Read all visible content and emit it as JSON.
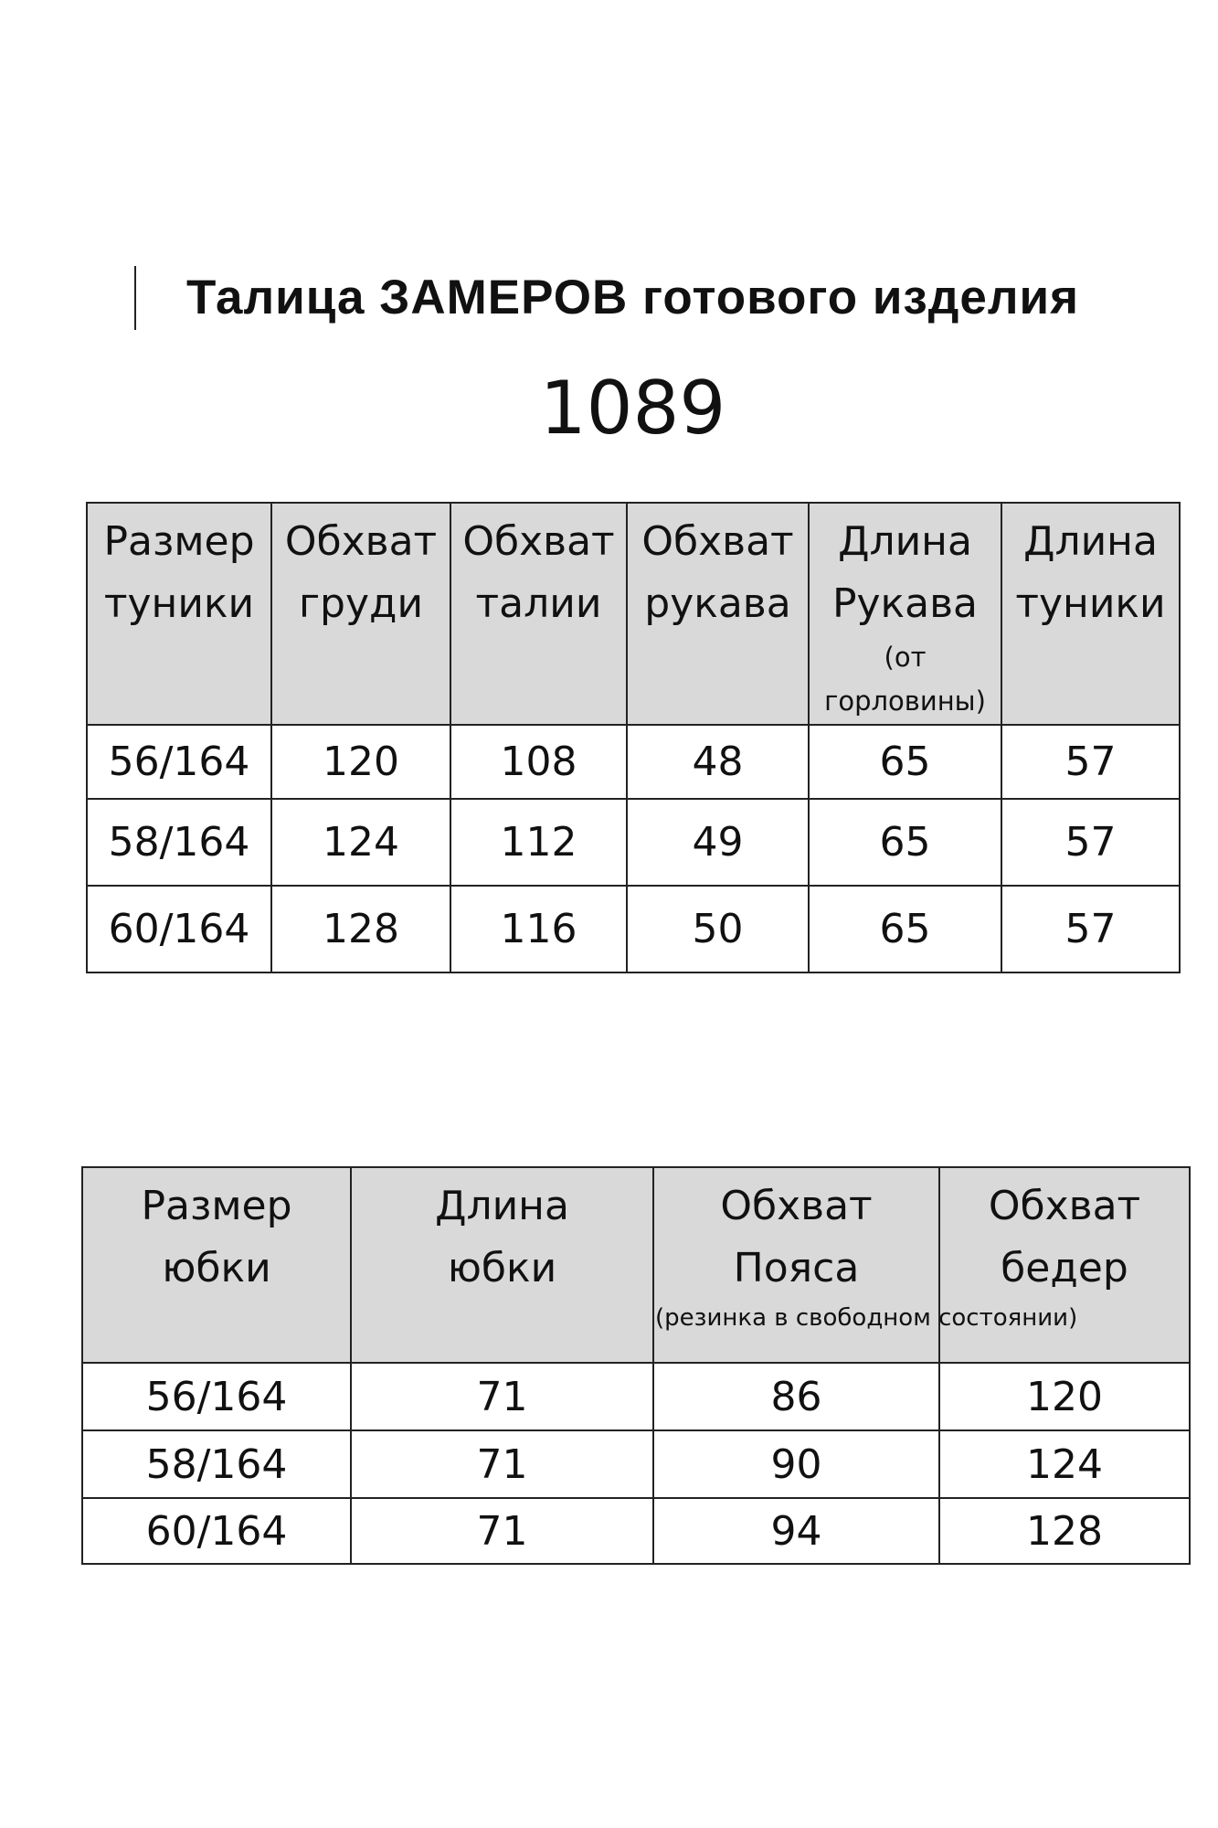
{
  "title": "Талица ЗАМЕРОВ готового изделия",
  "model_number": "1089",
  "tunic_table": {
    "headers": [
      {
        "main": "Размер туники",
        "sub": ""
      },
      {
        "main": "Обхват груди",
        "sub": ""
      },
      {
        "main": "Обхват талии",
        "sub": ""
      },
      {
        "main": "Обхват рукава",
        "sub": ""
      },
      {
        "main": "Длина Рукава",
        "sub": "(от горловины)"
      },
      {
        "main": "Длина туники",
        "sub": ""
      }
    ],
    "rows": [
      [
        "56/164",
        "120",
        "108",
        "48",
        "65",
        "57"
      ],
      [
        "58/164",
        "124",
        "112",
        "49",
        "65",
        "57"
      ],
      [
        "60/164",
        "128",
        "116",
        "50",
        "65",
        "57"
      ]
    ]
  },
  "skirt_table": {
    "headers": [
      {
        "main": "Размер юбки",
        "sub": ""
      },
      {
        "main": "Длина юбки",
        "sub": ""
      },
      {
        "main": "Обхват Пояса",
        "sub": "(резинка в свободном состоянии)"
      },
      {
        "main": "Обхват бедер",
        "sub": ""
      }
    ],
    "rows": [
      [
        "56/164",
        "71",
        "86",
        "120"
      ],
      [
        "58/164",
        "71",
        "90",
        "124"
      ],
      [
        "60/164",
        "71",
        "94",
        "128"
      ]
    ]
  },
  "colors": {
    "header_bg": "#d9d9d9",
    "border": "#222222"
  }
}
